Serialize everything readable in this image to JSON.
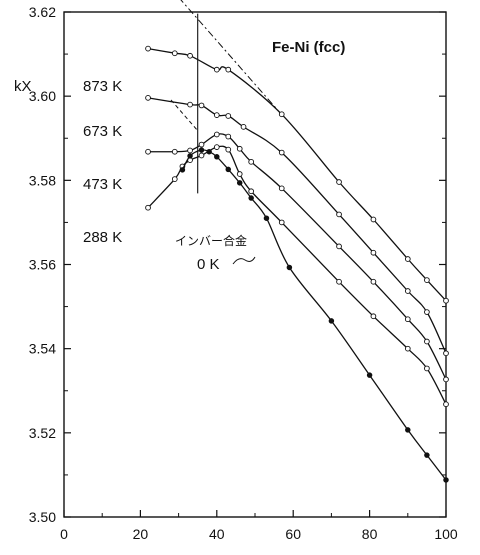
{
  "chart_data": {
    "type": "line",
    "title": "Fe-Ni (fcc)",
    "ylabel": "kX",
    "xlabel": "",
    "xlim": [
      0,
      100
    ],
    "ylim": [
      3.5,
      3.62
    ],
    "xticks": [
      "0",
      "20",
      "40",
      "60",
      "80",
      "100"
    ],
    "xtick_values": [
      0,
      20,
      40,
      60,
      80,
      100
    ],
    "yticks": [
      "3.50",
      "3.52",
      "3.54",
      "3.56",
      "3.58",
      "3.60",
      "3.62"
    ],
    "ytick_values": [
      3.5,
      3.52,
      3.54,
      3.56,
      3.58,
      3.6,
      3.62
    ],
    "grid": false,
    "series": [
      {
        "name": "873 K",
        "marker": "open",
        "x": [
          22,
          29,
          33,
          40,
          43,
          57,
          72,
          81,
          90,
          95,
          100
        ],
        "y": [
          3.6113,
          3.6102,
          3.6096,
          3.6063,
          3.6063,
          3.5957,
          3.5796,
          3.5707,
          3.5613,
          3.5563,
          3.5514
        ]
      },
      {
        "name": "673 K",
        "marker": "open",
        "x": [
          22,
          33,
          36,
          40,
          43,
          47,
          57,
          72,
          81,
          90,
          95,
          100
        ],
        "y": [
          3.5996,
          3.598,
          3.5978,
          3.5955,
          3.5953,
          3.5927,
          3.5866,
          3.5719,
          3.5628,
          3.5537,
          3.5487,
          3.5389
        ]
      },
      {
        "name": "473 K",
        "marker": "open",
        "x": [
          22,
          29,
          33,
          36,
          40,
          43,
          46,
          49,
          57,
          72,
          81,
          90,
          95,
          100
        ],
        "y": [
          3.5868,
          3.5868,
          3.5871,
          3.5885,
          3.5909,
          3.5904,
          3.5875,
          3.5844,
          3.5781,
          3.5643,
          3.5559,
          3.547,
          3.5417,
          3.5327
        ]
      },
      {
        "name": "288 K",
        "marker": "open",
        "x": [
          22,
          29,
          31,
          33,
          36,
          40,
          43,
          46,
          49,
          57,
          72,
          81,
          90,
          95,
          100
        ],
        "y": [
          3.5735,
          3.5803,
          3.5833,
          3.5848,
          3.5859,
          3.5879,
          3.5873,
          3.5815,
          3.5774,
          3.57,
          3.5559,
          3.5477,
          3.54,
          3.5353,
          3.5268
        ]
      },
      {
        "name": "0 K",
        "marker": "filled",
        "x": [
          31,
          33,
          36,
          38,
          40,
          43,
          46,
          49,
          53,
          59,
          70,
          80,
          90,
          95,
          100
        ],
        "y": [
          3.5825,
          3.5858,
          3.5872,
          3.5868,
          3.5856,
          3.5826,
          3.5794,
          3.5758,
          3.571,
          3.5593,
          3.5466,
          3.5337,
          3.5207,
          3.5147,
          3.5088
        ]
      }
    ],
    "annotations": {
      "invar_label": "インバー合金",
      "invar_x": 35,
      "dash_dot_line": {
        "x": [
          30,
          57
        ],
        "y": [
          3.6235,
          3.5956
        ]
      },
      "dashed_line": {
        "x": [
          28,
          35
        ],
        "y": [
          3.5991,
          3.5918
        ]
      }
    }
  }
}
